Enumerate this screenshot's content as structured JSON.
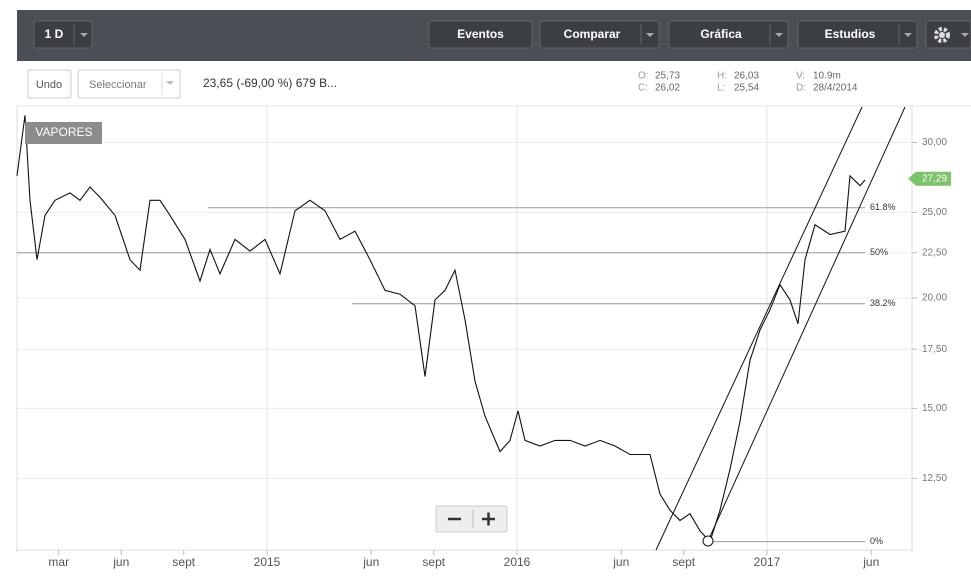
{
  "toolbar": {
    "interval": "1 D",
    "buttons": [
      "Eventos",
      "Comparar",
      "Gráfica",
      "Estudios"
    ]
  },
  "info": {
    "undo": "Undo",
    "select": "Seleccionar",
    "summary": "23,65 (-69,00 %) 679 B...",
    "stats": [
      {
        "key": "O:",
        "value": "25,73"
      },
      {
        "key": "C:",
        "value": "26,02"
      },
      {
        "key": "H:",
        "value": "26,03"
      },
      {
        "key": "L:",
        "value": "25,54"
      },
      {
        "key": "V:",
        "value": "10.9m"
      },
      {
        "key": "D:",
        "value": "28/4/2014"
      }
    ]
  },
  "chart_data": {
    "type": "line",
    "log_scale": true,
    "grid": true,
    "x": [
      2014.0,
      2014.032,
      2014.052,
      2014.08,
      2014.112,
      2014.152,
      2014.212,
      2014.252,
      2014.292,
      2014.332,
      2014.392,
      2014.452,
      2014.492,
      2014.532,
      2014.572,
      2014.612,
      2014.672,
      2014.732,
      2014.772,
      2014.812,
      2014.872,
      2014.932,
      2014.992,
      2015.052,
      2015.112,
      2015.172,
      2015.232,
      2015.292,
      2015.352,
      2015.412,
      2015.472,
      2015.532,
      2015.592,
      2015.632,
      2015.672,
      2015.712,
      2015.752,
      2015.792,
      2015.832,
      2015.872,
      2015.932,
      2015.972,
      2016.004,
      2016.032,
      2016.092,
      2016.152,
      2016.212,
      2016.272,
      2016.332,
      2016.392,
      2016.452,
      2016.532,
      2016.572,
      2016.612,
      2016.652,
      2016.692,
      2016.732,
      2016.772,
      2016.812,
      2016.852,
      2016.892,
      2016.932,
      2016.972,
      2017.012,
      2017.052,
      2017.092,
      2017.124,
      2017.152,
      2017.192,
      2017.252,
      2017.312,
      2017.332,
      2017.372,
      2017.392
    ],
    "series": [
      {
        "name": "VAPORES",
        "color": "#111111",
        "values": [
          27.5,
          32.2,
          25.8,
          22.1,
          24.8,
          25.8,
          26.3,
          25.8,
          26.7,
          26.0,
          24.8,
          22.1,
          21.5,
          25.8,
          25.8,
          24.8,
          23.3,
          20.9,
          22.7,
          21.3,
          23.3,
          22.6,
          23.3,
          21.3,
          25.1,
          25.8,
          25.1,
          23.3,
          23.8,
          22.1,
          20.4,
          20.2,
          19.6,
          16.3,
          19.9,
          20.4,
          21.5,
          18.9,
          16.1,
          14.7,
          13.4,
          13.8,
          14.9,
          13.8,
          13.6,
          13.8,
          13.8,
          13.6,
          13.8,
          13.6,
          13.3,
          13.3,
          12.0,
          11.5,
          11.2,
          11.4,
          10.9,
          10.6,
          11.5,
          12.8,
          14.5,
          17.0,
          18.4,
          19.4,
          20.7,
          19.9,
          18.7,
          22.1,
          24.2,
          23.6,
          23.8,
          27.5,
          26.8,
          27.2
        ]
      }
    ],
    "xlim": [
      2014.0,
      2017.58
    ],
    "xticks": [
      {
        "value": 2014.167,
        "label": "mar"
      },
      {
        "value": 2014.417,
        "label": "jun"
      },
      {
        "value": 2014.667,
        "label": "sept"
      },
      2015,
      {
        "value": 2015.417,
        "label": "jun"
      },
      {
        "value": 2015.667,
        "label": "sept"
      },
      2016,
      {
        "value": 2016.417,
        "label": "jun"
      },
      {
        "value": 2016.667,
        "label": "sept"
      },
      2017,
      {
        "value": 2017.417,
        "label": "jun"
      }
    ],
    "ylim": [
      10.37,
      32.9
    ],
    "yticks": [
      {
        "value": 30,
        "label": "30,00"
      },
      {
        "value": 25,
        "label": "25,00"
      },
      {
        "value": 22.5,
        "label": "22,50"
      },
      {
        "value": 20,
        "label": "20,00"
      },
      {
        "value": 17.5,
        "label": "17,50"
      },
      {
        "value": 15,
        "label": "15,00"
      },
      {
        "value": 12.5,
        "label": "12,50"
      }
    ],
    "fib_levels": [
      {
        "label": "61.8%",
        "value": 25.3,
        "from": 2014.764
      },
      {
        "label": "50%",
        "value": 22.5,
        "from": 2014.0
      },
      {
        "label": "38.2%",
        "value": 19.7,
        "from": 2015.34
      },
      {
        "label": "0%",
        "value": 10.6,
        "from": 2016.764
      }
    ],
    "last_price": {
      "value": 27.29,
      "label": "27,29"
    }
  }
}
